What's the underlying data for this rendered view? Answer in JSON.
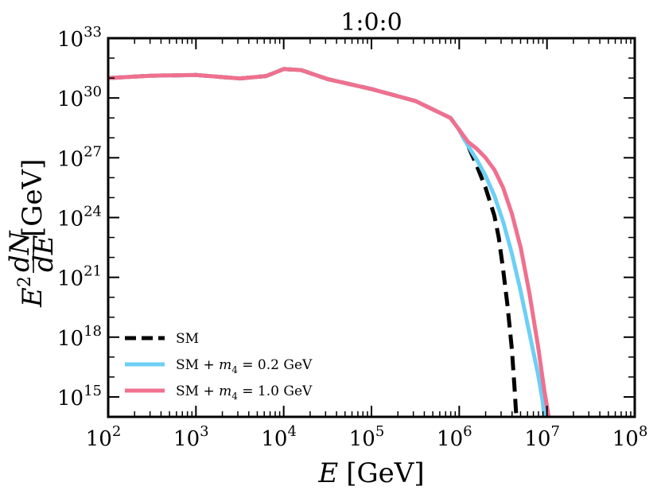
{
  "chart_data": {
    "type": "line",
    "title": "1:0:0",
    "xlabel_var": "E",
    "xlabel_unit": "[GeV]",
    "ylabel_prefix": "E",
    "ylabel_exp": "2",
    "ylabel_num": "dN",
    "ylabel_den": "dE",
    "ylabel_unit": "[GeV]",
    "x_scale": "log",
    "y_scale": "log",
    "xlim_log10": [
      2,
      8
    ],
    "ylim_log10": [
      14,
      33
    ],
    "x_ticks": [
      {
        "base": "10",
        "exp": "2",
        "value": 2
      },
      {
        "base": "10",
        "exp": "3",
        "value": 3
      },
      {
        "base": "10",
        "exp": "4",
        "value": 4
      },
      {
        "base": "10",
        "exp": "5",
        "value": 5
      },
      {
        "base": "10",
        "exp": "6",
        "value": 6
      },
      {
        "base": "10",
        "exp": "7",
        "value": 7
      },
      {
        "base": "10",
        "exp": "8",
        "value": 8
      }
    ],
    "y_ticks": [
      {
        "base": "10",
        "exp": "15",
        "value": 15
      },
      {
        "base": "10",
        "exp": "18",
        "value": 18
      },
      {
        "base": "10",
        "exp": "21",
        "value": 21
      },
      {
        "base": "10",
        "exp": "24",
        "value": 24
      },
      {
        "base": "10",
        "exp": "27",
        "value": 27
      },
      {
        "base": "10",
        "exp": "30",
        "value": 30
      },
      {
        "base": "10",
        "exp": "33",
        "value": 33
      }
    ],
    "legend_position": "bottom-left",
    "series": [
      {
        "name": "SM",
        "legend_prefix": "SM",
        "legend_var": "",
        "legend_sub": "",
        "legend_suffix": "",
        "color": "#000000",
        "dash": "dashed",
        "points_log10": [
          [
            2,
            31.0
          ],
          [
            2.5,
            31.12
          ],
          [
            3,
            31.15
          ],
          [
            3.5,
            30.98
          ],
          [
            3.8,
            31.1
          ],
          [
            4,
            31.45
          ],
          [
            4.2,
            31.4
          ],
          [
            4.5,
            30.95
          ],
          [
            5,
            30.45
          ],
          [
            5.5,
            29.85
          ],
          [
            5.9,
            29.0
          ],
          [
            6.0,
            28.4
          ],
          [
            6.1,
            27.6
          ],
          [
            6.2,
            26.6
          ],
          [
            6.3,
            25.5
          ],
          [
            6.4,
            24.1
          ],
          [
            6.45,
            23.0
          ],
          [
            6.5,
            21.4
          ],
          [
            6.55,
            19.6
          ],
          [
            6.6,
            17.4
          ],
          [
            6.63,
            15.5
          ],
          [
            6.65,
            14.0
          ]
        ]
      },
      {
        "name": "SM + m4 = 0.2 GeV",
        "legend_prefix": "SM + ",
        "legend_var": "m",
        "legend_sub": "4",
        "legend_suffix": " = 0.2 GeV",
        "color": "#6ccff6",
        "dash": "solid",
        "points_log10": [
          [
            2,
            31.0
          ],
          [
            2.5,
            31.12
          ],
          [
            3,
            31.15
          ],
          [
            3.5,
            30.98
          ],
          [
            3.8,
            31.1
          ],
          [
            4,
            31.45
          ],
          [
            4.2,
            31.4
          ],
          [
            4.5,
            30.95
          ],
          [
            5,
            30.45
          ],
          [
            5.5,
            29.85
          ],
          [
            5.9,
            29.0
          ],
          [
            6.0,
            28.4
          ],
          [
            6.1,
            27.6
          ],
          [
            6.2,
            26.9
          ],
          [
            6.3,
            26.1
          ],
          [
            6.4,
            25.1
          ],
          [
            6.5,
            23.8
          ],
          [
            6.6,
            22.2
          ],
          [
            6.7,
            20.3
          ],
          [
            6.8,
            18.2
          ],
          [
            6.9,
            16.1
          ],
          [
            6.95,
            14.8
          ],
          [
            6.97,
            14.0
          ]
        ]
      },
      {
        "name": "SM + m4 = 1.0 GeV",
        "legend_prefix": "SM + ",
        "legend_var": "m",
        "legend_sub": "4",
        "legend_suffix": " = 1.0 GeV",
        "color": "#f0708e",
        "dash": "solid",
        "points_log10": [
          [
            2,
            31.0
          ],
          [
            2.5,
            31.12
          ],
          [
            3,
            31.15
          ],
          [
            3.5,
            30.98
          ],
          [
            3.8,
            31.1
          ],
          [
            4,
            31.45
          ],
          [
            4.2,
            31.4
          ],
          [
            4.5,
            30.95
          ],
          [
            5,
            30.45
          ],
          [
            5.5,
            29.85
          ],
          [
            5.9,
            29.0
          ],
          [
            6.0,
            28.4
          ],
          [
            6.1,
            27.8
          ],
          [
            6.2,
            27.45
          ],
          [
            6.3,
            27.0
          ],
          [
            6.4,
            26.4
          ],
          [
            6.5,
            25.5
          ],
          [
            6.6,
            24.2
          ],
          [
            6.7,
            22.5
          ],
          [
            6.8,
            20.2
          ],
          [
            6.9,
            17.5
          ],
          [
            6.97,
            15.3
          ],
          [
            7.02,
            14.0
          ]
        ]
      }
    ]
  }
}
